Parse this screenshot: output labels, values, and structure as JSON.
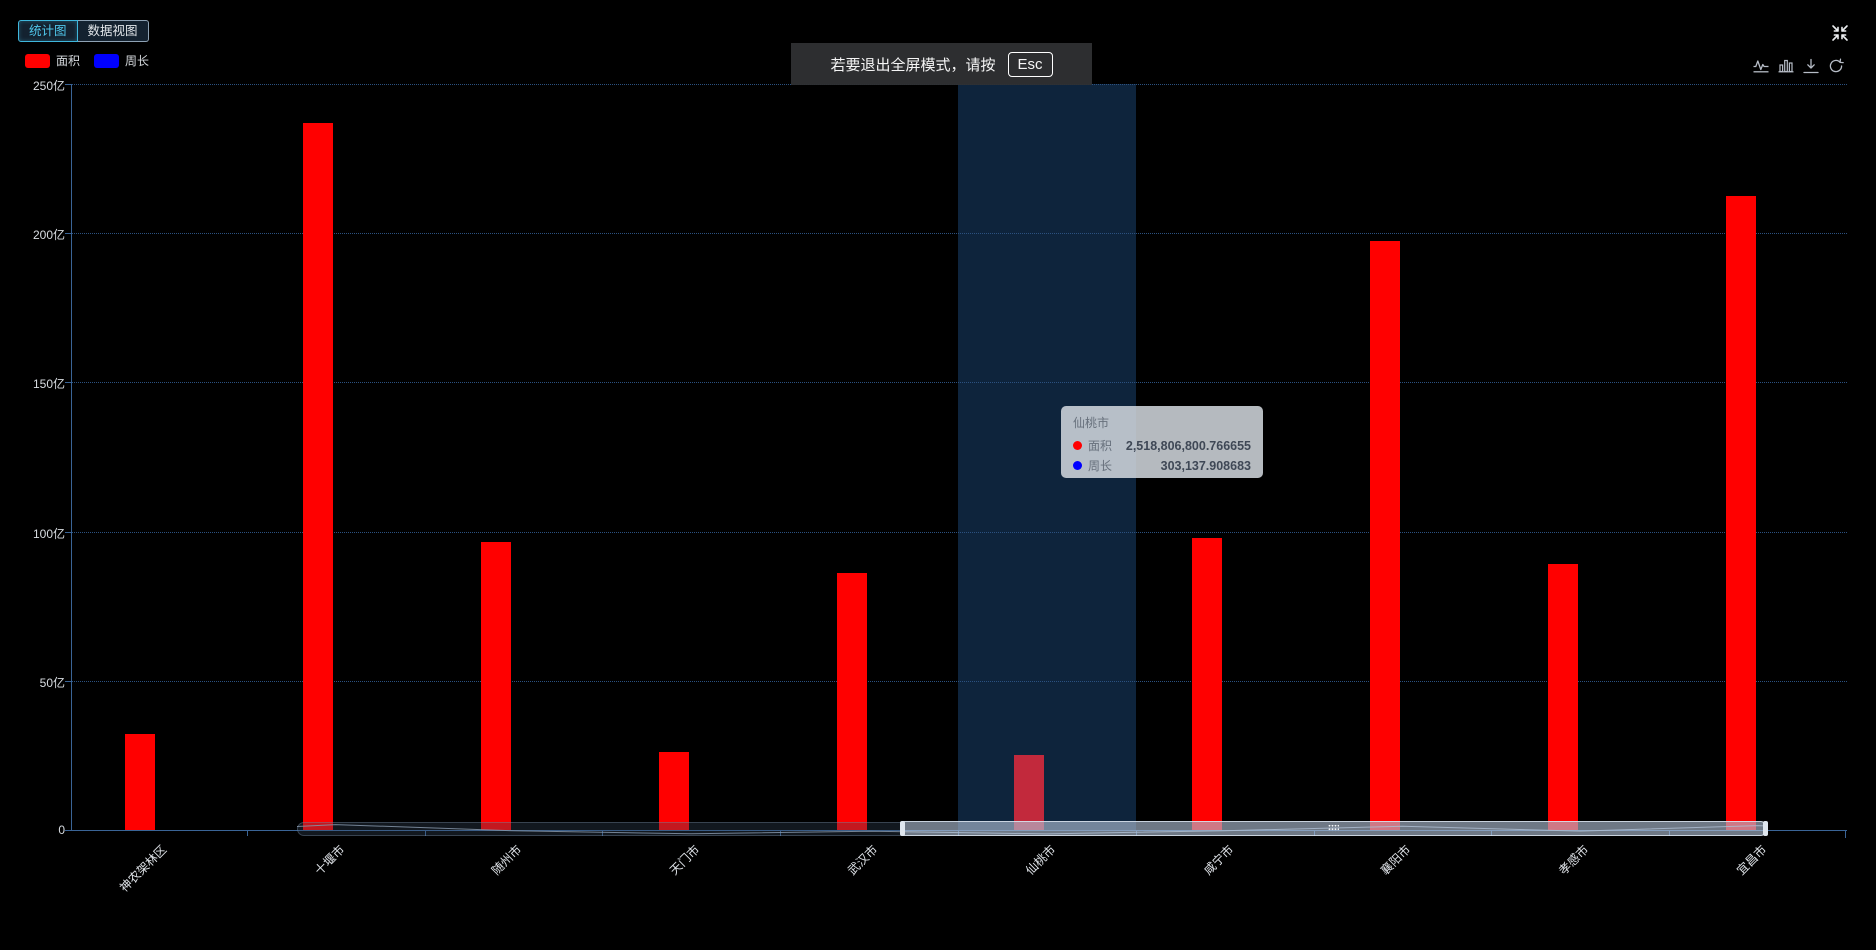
{
  "tabs": [
    {
      "label": "统计图",
      "active": true
    },
    {
      "label": "数据视图",
      "active": false
    }
  ],
  "legend": [
    {
      "label": "面积",
      "color": "#ff0000"
    },
    {
      "label": "周长",
      "color": "#0000ff"
    }
  ],
  "toast": {
    "text": "若要退出全屏模式，请按",
    "key": "Esc"
  },
  "toolbox_icons": [
    "line-chart-icon",
    "bar-chart-icon",
    "download-icon",
    "restore-icon"
  ],
  "fullscreen_icon": "exit-fullscreen-icon",
  "tooltip": {
    "title": "仙桃市",
    "rows": [
      {
        "label": "面积",
        "color": "#ff0000",
        "value": "2,518,806,800.766655"
      },
      {
        "label": "周长",
        "color": "#0000ff",
        "value": "303,137.908683"
      }
    ]
  },
  "chart_data": {
    "type": "bar",
    "categories": [
      "神农架林区",
      "十堰市",
      "随州市",
      "天门市",
      "武汉市",
      "仙桃市",
      "咸宁市",
      "襄阳市",
      "孝感市",
      "宜昌市"
    ],
    "series": [
      {
        "name": "面积",
        "color": "#ff0000",
        "unit": "亿",
        "values": [
          32.2,
          237,
          96.5,
          26.2,
          86,
          25.188,
          97.8,
          197.4,
          89,
          212.6
        ]
      },
      {
        "name": "周长",
        "color": "#0000ff",
        "unit": "亿",
        "values": [
          0,
          0,
          0,
          0,
          0,
          0,
          0,
          0,
          0,
          0
        ]
      }
    ],
    "y_ticks": [
      "0",
      "50亿",
      "100亿",
      "150亿",
      "200亿",
      "250亿"
    ],
    "ylim": [
      0,
      250
    ],
    "grid": "dotted-horizontal",
    "legend_position": "top-left",
    "highlighted_category": "仙桃市",
    "highlighted_bar_color": "#c2293c",
    "tooltip_exact": {
      "仙桃市": {
        "面积": "2,518,806,800.766655",
        "周长": "303,137.908683"
      }
    }
  }
}
